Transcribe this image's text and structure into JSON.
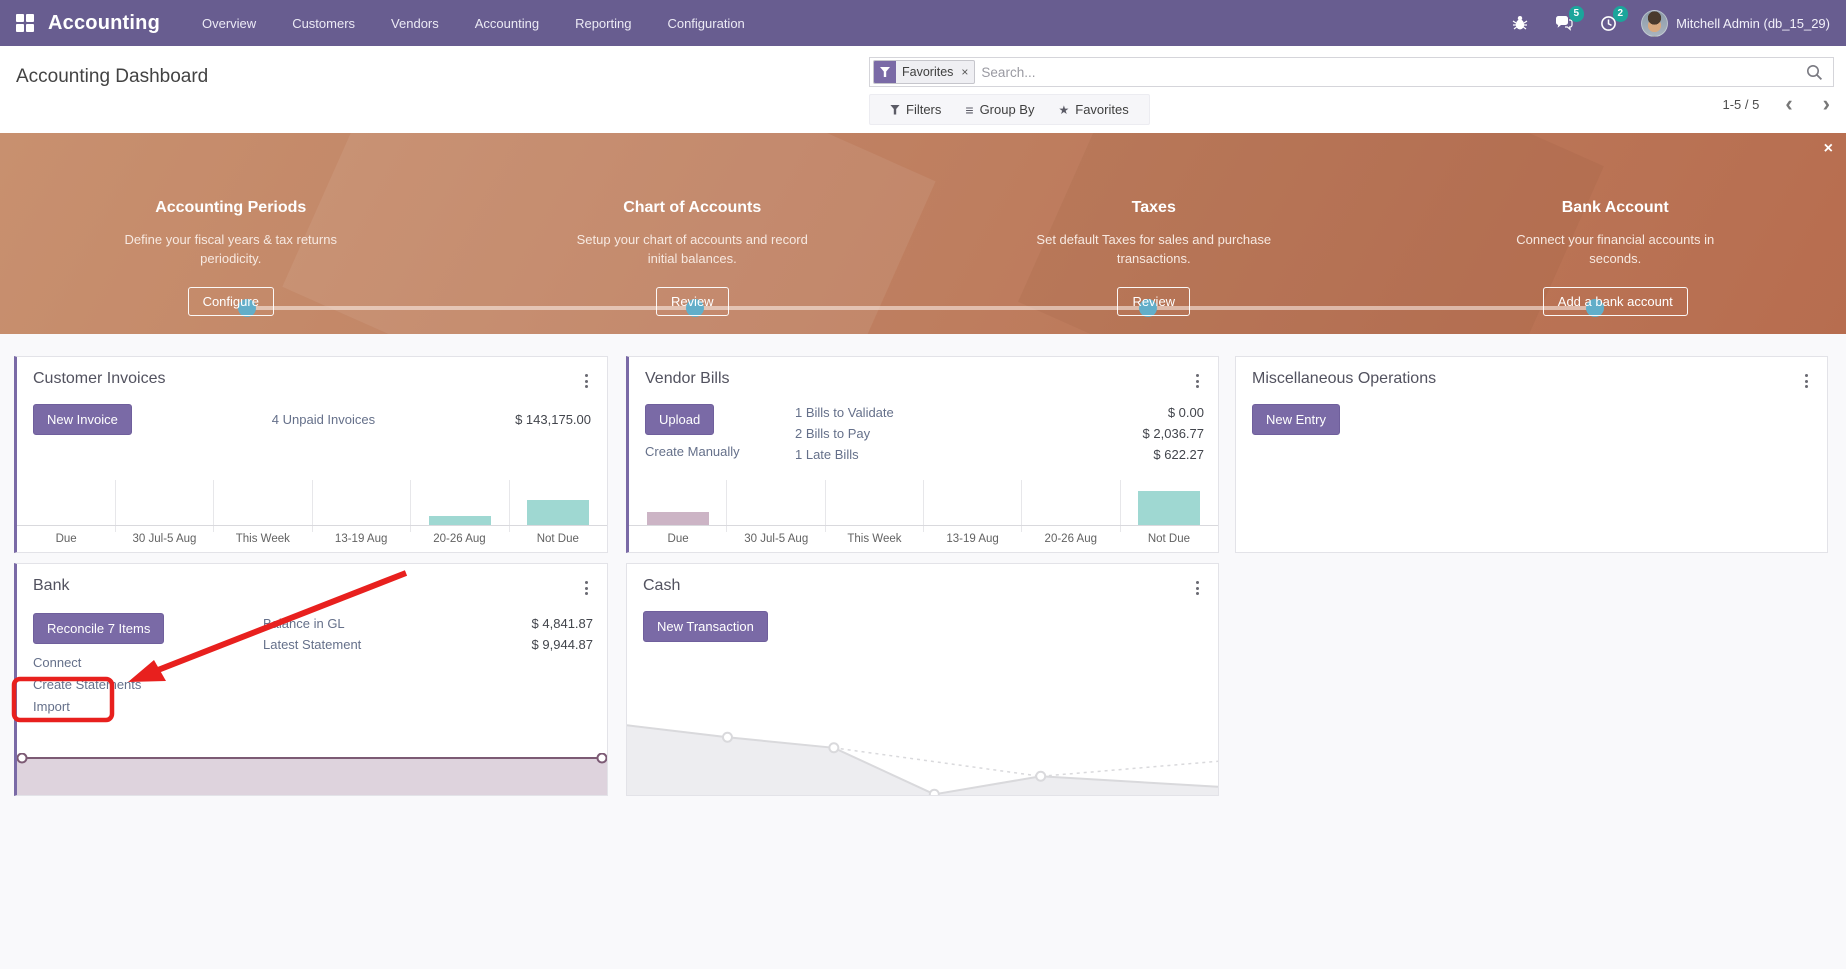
{
  "navbar": {
    "brand": "Accounting",
    "menu": [
      "Overview",
      "Customers",
      "Vendors",
      "Accounting",
      "Reporting",
      "Configuration"
    ],
    "messages_badge": "5",
    "activities_badge": "2",
    "user_name": "Mitchell Admin (db_15_29)"
  },
  "control_panel": {
    "page_title": "Accounting Dashboard",
    "search_facet": "Favorites",
    "facet_remove": "×",
    "search_placeholder": "Search...",
    "filters_label": "Filters",
    "group_by_label": "Group By",
    "favorites_label": "Favorites",
    "group_by_glyph": "≡",
    "star_glyph": "★",
    "pager_text": "1-5 / 5",
    "pager_prev": "‹",
    "pager_next": "›"
  },
  "banner": {
    "close_glyph": "×",
    "steps": [
      {
        "title": "Accounting Periods",
        "desc": "Define your fiscal years & tax returns periodicity.",
        "button": "Configure",
        "done": true
      },
      {
        "title": "Chart of Accounts",
        "desc": "Setup your chart of accounts and record initial balances.",
        "button": "Review",
        "done": true
      },
      {
        "title": "Taxes",
        "desc": "Set default Taxes for sales and purchase transactions.",
        "button": "Review",
        "done": true
      },
      {
        "title": "Bank Account",
        "desc": "Connect your financial accounts in seconds.",
        "button": "Add a bank account",
        "done": true
      }
    ]
  },
  "cards": {
    "customer_invoices": {
      "title": "Customer Invoices",
      "button": "New Invoice",
      "link": "4 Unpaid Invoices",
      "amount": "$ 143,175.00"
    },
    "vendor_bills": {
      "title": "Vendor Bills",
      "button": "Upload",
      "link": "Create Manually",
      "rows": [
        {
          "label": "1 Bills to Validate",
          "amount": "$ 0.00"
        },
        {
          "label": "2 Bills to Pay",
          "amount": "$ 2,036.77"
        },
        {
          "label": "1 Late Bills",
          "amount": "$ 622.27"
        }
      ]
    },
    "misc_operations": {
      "title": "Miscellaneous Operations",
      "button": "New Entry"
    },
    "bank": {
      "title": "Bank",
      "button": "Reconcile 7 Items",
      "links": [
        "Connect",
        "Create Statements",
        "Import"
      ],
      "rows": [
        {
          "label": "Balance in GL",
          "amount": "$ 4,841.87"
        },
        {
          "label": "Latest Statement",
          "amount": "$ 9,944.87"
        }
      ]
    },
    "cash": {
      "title": "Cash",
      "button": "New Transaction"
    }
  },
  "annotation": {
    "type": "red-arrow-and-box-highlight",
    "target": "Import link in Bank card",
    "color": "#e8201e"
  },
  "chart_data": [
    {
      "id": "ci",
      "type": "bar",
      "title": "Customer Invoices due chart",
      "categories": [
        "Due",
        "30 Jul-5 Aug",
        "This Week",
        "13-19 Aug",
        "20-26 Aug",
        "Not Due"
      ],
      "values_pct": [
        0,
        0,
        0,
        0,
        24,
        65
      ],
      "bar_colors": [
        "#9fd8d2",
        "#9fd8d2",
        "#9fd8d2",
        "#9fd8d2",
        "#9fd8d2",
        "#9fd8d2"
      ],
      "total_shown": "$ 143,175.00",
      "grid": true,
      "legend": false
    },
    {
      "id": "vb",
      "type": "bar",
      "title": "Vendor Bills due chart",
      "categories": [
        "Due",
        "30 Jul-5 Aug",
        "This Week",
        "13-19 Aug",
        "20-26 Aug",
        "Not Due"
      ],
      "values_pct": [
        35,
        0,
        0,
        0,
        0,
        87
      ],
      "bar_colors": [
        "#ccb4c5",
        "#9fd8d2",
        "#9fd8d2",
        "#9fd8d2",
        "#9fd8d2",
        "#9fd8d2"
      ],
      "grid": true,
      "legend": false
    },
    {
      "id": "bank",
      "type": "area",
      "title": "Bank balance sparkline (flat)",
      "points_pct": [
        [
          0,
          12
        ],
        [
          100,
          12
        ]
      ],
      "marker_indices": [
        0,
        1
      ],
      "line_color": "#7c5a74",
      "fill_color": "#ded3dd",
      "legend": false
    },
    {
      "id": "cash",
      "type": "area",
      "title": "Cash balance sparkline (declining)",
      "points_pct": [
        [
          0,
          7
        ],
        [
          17,
          23
        ],
        [
          35,
          37
        ],
        [
          52,
          99
        ],
        [
          70,
          75
        ],
        [
          100,
          89
        ]
      ],
      "marker_indices": [
        1,
        2,
        3,
        4
      ],
      "dashed_pct": [
        [
          35,
          37
        ],
        [
          70,
          75
        ],
        [
          100,
          55
        ]
      ],
      "line_color": "#d9d9dc",
      "fill_color": "#ededf0",
      "legend": false
    }
  ],
  "colors": {
    "navbar": "#685d90",
    "primary_button": "#7a6aa6",
    "accent_border": "#7a6aa6",
    "teal_bar": "#9fd8d2",
    "mauve_bar": "#ccb4c5",
    "banner_gradient_from": "#c8906f",
    "banner_gradient_to": "#b76d4f",
    "badge": "#1ca59b",
    "step_dot": "#62aec9",
    "annotation_red": "#e8201e"
  }
}
